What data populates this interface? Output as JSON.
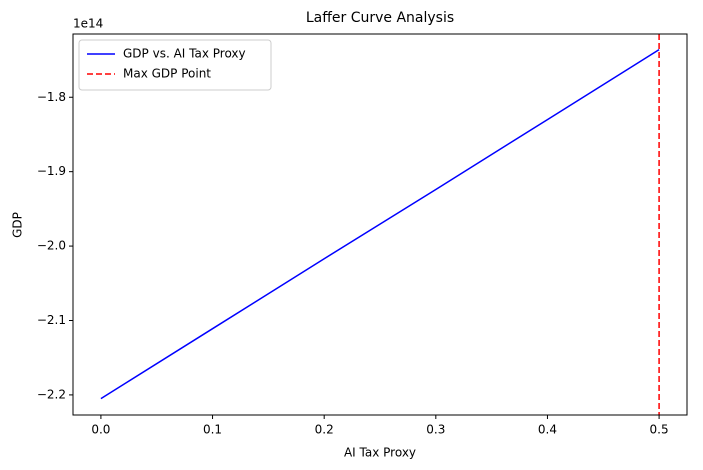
{
  "chart_data": {
    "type": "line",
    "title": "Laffer Curve Analysis",
    "xlabel": "AI Tax Proxy",
    "ylabel": "GDP",
    "y_offset_label": "1e14",
    "x": [
      0,
      0.1,
      0.2,
      0.3,
      0.4,
      0.5
    ],
    "series": [
      {
        "name": "GDP vs. AI Tax Proxy",
        "color": "#0000ff",
        "values": [
          -2.205,
          -2.111,
          -2.017,
          -1.924,
          -1.83,
          -1.736
        ]
      }
    ],
    "vline": {
      "name": "Max GDP Point",
      "x": 0.5,
      "color": "#ff0000"
    },
    "xlim": [
      -0.025,
      0.525
    ],
    "xticks": [
      {
        "value": 0,
        "label": "0.0"
      },
      0.1,
      0.2,
      0.3,
      0.4,
      0.5
    ],
    "ylim": [
      -2.227,
      -1.715
    ],
    "yticks": [
      {
        "value": -2.2,
        "label": "−2.2"
      },
      {
        "value": -2.1,
        "label": "−2.1"
      },
      {
        "value": -2.0,
        "label": "−2.0"
      },
      {
        "value": -1.9,
        "label": "−1.9"
      },
      {
        "value": -1.8,
        "label": "−1.8"
      }
    ],
    "legend": "upper left"
  }
}
